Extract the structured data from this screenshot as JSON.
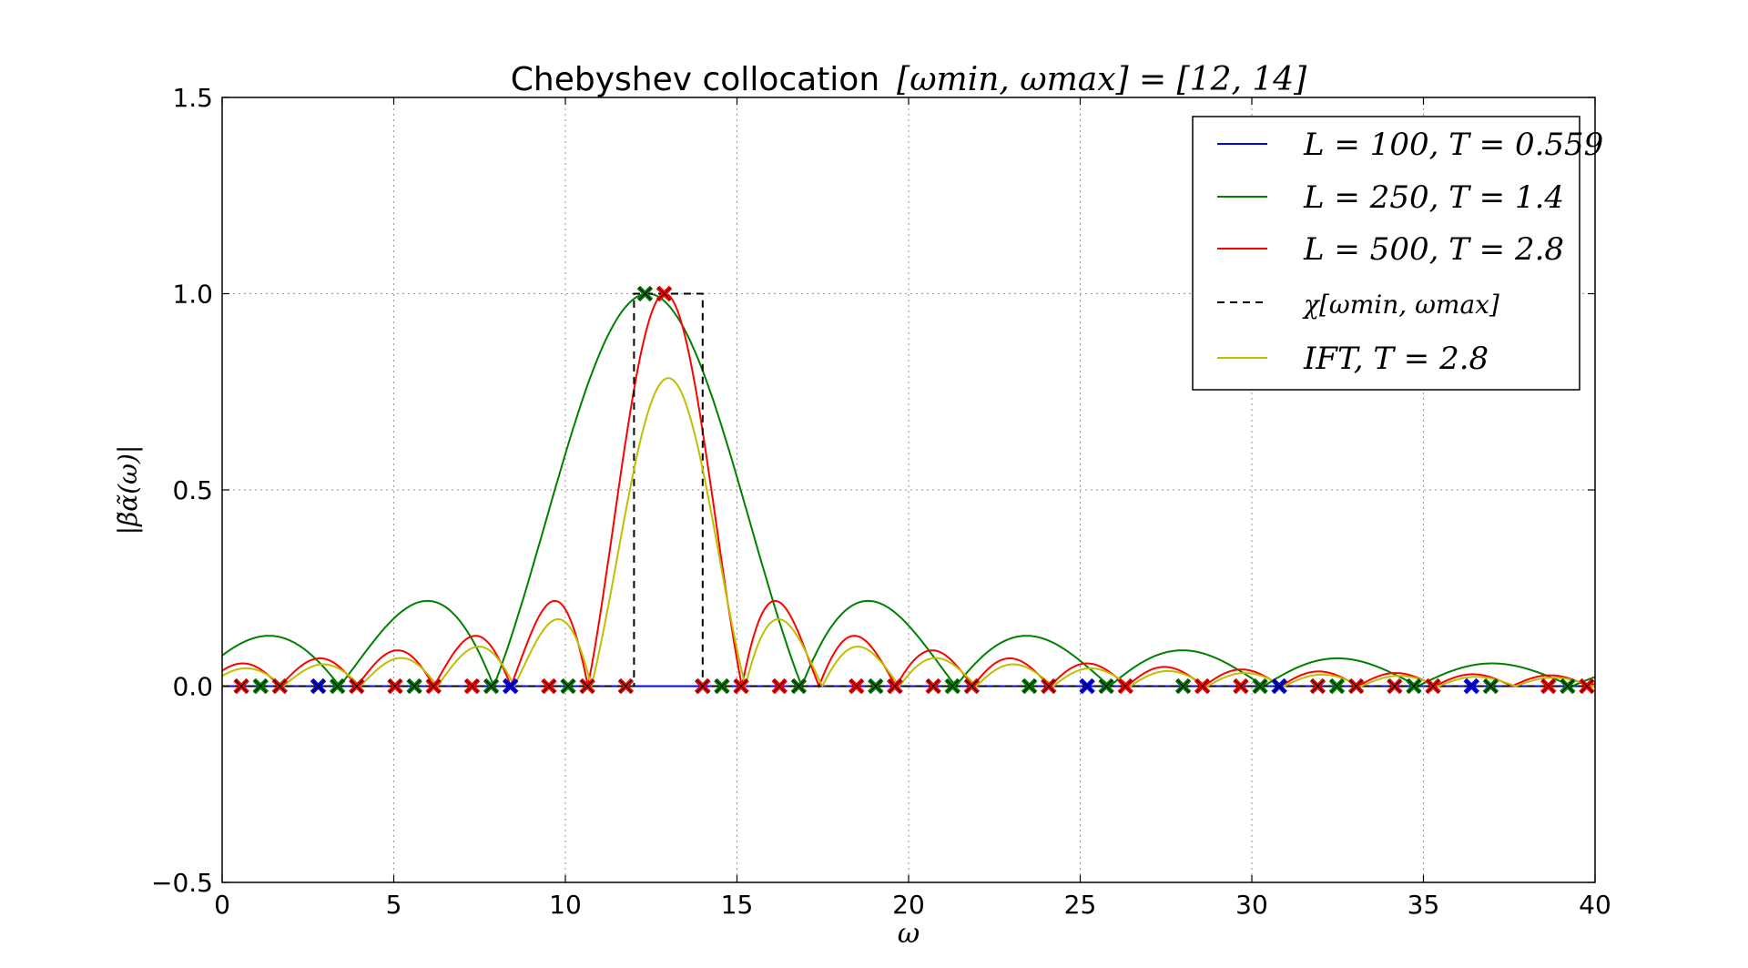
{
  "chart_data": {
    "type": "line",
    "title": {
      "prefix": "Chebyshev collocation",
      "math": "[ωmin, ωmax] = [12, 14]"
    },
    "xlabel": "ω",
    "ylabel": "|β̃α̃(ω)|",
    "xlim": [
      0,
      40
    ],
    "ylim": [
      -0.5,
      1.5
    ],
    "xticks": [
      0,
      5,
      10,
      15,
      20,
      25,
      30,
      35,
      40
    ],
    "xtick_labels": [
      "0",
      "5",
      "10",
      "15",
      "20",
      "25",
      "30",
      "35",
      "40"
    ],
    "yticks": [
      -0.5,
      0.0,
      0.5,
      1.0,
      1.5
    ],
    "ytick_labels": [
      "−0.5",
      "0.0",
      "0.5",
      "1.0",
      "1.5"
    ],
    "grid": true,
    "legend_position": "top-right",
    "window": [
      12,
      14
    ],
    "series": [
      {
        "name": "L = 100, T = 0.559",
        "color": "#0000ff",
        "style": "solid",
        "T": 0.559,
        "peak": 0,
        "markers_x": [
          2.8,
          8.4,
          14.0,
          19.6,
          25.2,
          30.8,
          36.4
        ]
      },
      {
        "name": "L = 250, T = 1.4",
        "color": "#008000",
        "style": "solid",
        "T": 1.4,
        "peak": 1.0,
        "peak_x": 12.4,
        "markers_x": [
          1.12,
          3.36,
          5.6,
          7.84,
          10.08,
          12.32,
          14.56,
          16.8,
          19.04,
          21.28,
          23.52,
          25.76,
          28.0,
          30.24,
          32.48,
          34.72,
          36.96,
          39.2
        ]
      },
      {
        "name": "L = 500, T = 2.8",
        "color": "#ff0000",
        "style": "solid",
        "T": 2.8,
        "peak": 1.0,
        "peak_x": 12.9,
        "markers_x": [
          0.56,
          1.68,
          3.92,
          5.04,
          6.16,
          7.28,
          9.52,
          10.64,
          11.76,
          12.88,
          14.0,
          15.12,
          16.24,
          18.48,
          19.6,
          20.72,
          21.84,
          24.08,
          26.32,
          28.56,
          29.68,
          31.92,
          33.04,
          34.16,
          35.28,
          38.64,
          39.76
        ]
      },
      {
        "name": "χ[ωmin, ωmax]",
        "color": "#000000",
        "style": "dashed",
        "x": [
          0,
          12,
          12,
          14,
          14,
          40
        ],
        "values": [
          0,
          0,
          1,
          1,
          0,
          0
        ]
      },
      {
        "name": "IFT, T = 2.8",
        "color": "#bfbf00",
        "style": "solid",
        "T": 2.8,
        "peak": 0.785,
        "peak_x": 13.0
      }
    ]
  }
}
